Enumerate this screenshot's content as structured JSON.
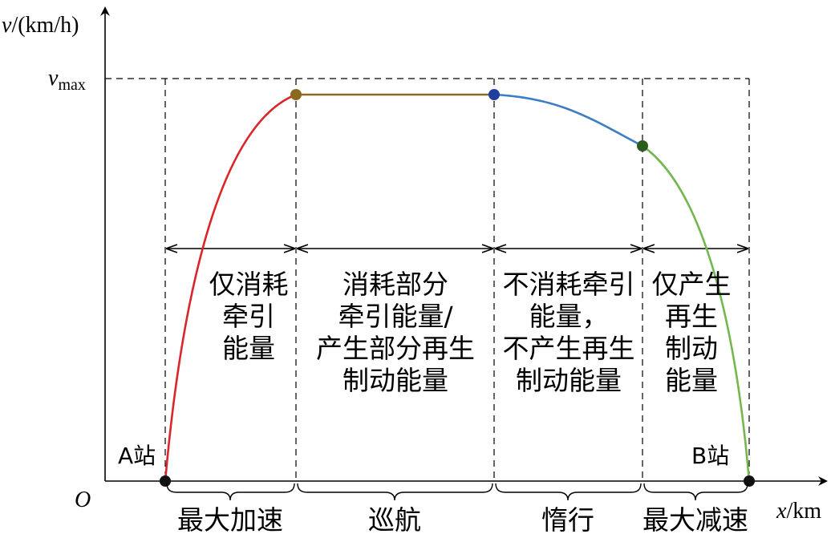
{
  "axes": {
    "y_label_var": "v",
    "y_label_unit": "/(km/h)",
    "y_max_var": "v",
    "y_max_sub": "max",
    "x_label_var": "x",
    "x_label_unit": "/km",
    "origin": "O"
  },
  "stations": {
    "start": "A站",
    "end": "B站"
  },
  "regions": [
    {
      "lines": [
        "仅消耗",
        "牵引",
        "能量"
      ]
    },
    {
      "lines": [
        "消耗部分",
        "牵引能量/",
        "产生部分再生",
        "制动能量"
      ]
    },
    {
      "lines": [
        "不消耗牵引",
        "能量，",
        "不产生再生",
        "制动能量"
      ]
    },
    {
      "lines": [
        "仅产生",
        "再生",
        "制动",
        "能量"
      ]
    }
  ],
  "phases": [
    "最大加速",
    "巡航",
    "惰行",
    "最大减速"
  ],
  "colors": {
    "accelerate": "#d9262b",
    "cruise": "#8b6a1f",
    "coast": "#3d7dc4",
    "decelerate": "#72b84f",
    "dot_start": "#111111",
    "dot_cruise": "#8b6a1f",
    "dot_coast": "#1f3f9e",
    "dot_decel": "#2d5a1f",
    "dot_end": "#111111"
  }
}
